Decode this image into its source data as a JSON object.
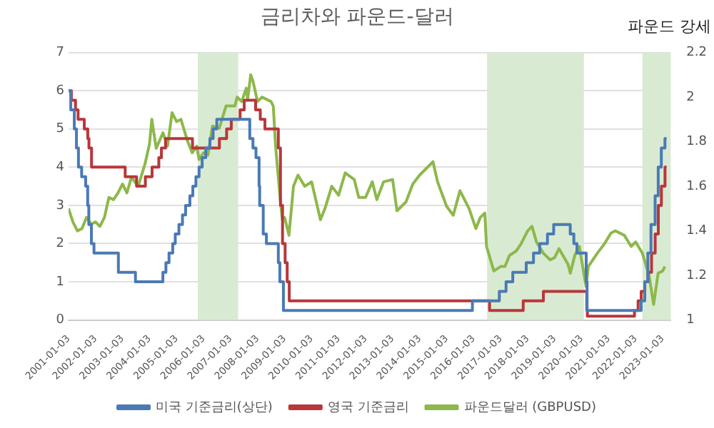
{
  "chart_data": {
    "type": "line",
    "title": "금리차와 파운드-달러",
    "y2label": "파운드 강세",
    "xlim": [
      "2001-01-01",
      "2023-04-20"
    ],
    "xticks": [
      "2001-01-03",
      "2002-01-03",
      "2003-01-03",
      "2004-01-03",
      "2005-01-03",
      "2006-01-03",
      "2007-01-03",
      "2008-01-03",
      "2009-01-03",
      "2010-01-03",
      "2011-01-03",
      "2012-01-03",
      "2013-01-03",
      "2014-01-03",
      "2015-01-03",
      "2016-01-03",
      "2017-01-03",
      "2018-01-03",
      "2019-01-03",
      "2020-01-03",
      "2021-01-03",
      "2022-01-03",
      "2023-01-03"
    ],
    "ylim": [
      0,
      7
    ],
    "yticks": [
      0,
      1,
      2,
      3,
      4,
      5,
      6,
      7
    ],
    "y2lim": [
      1,
      2.2
    ],
    "y2ticks": [
      1,
      1.2,
      1.4,
      1.6,
      1.8,
      2,
      2.2
    ],
    "grid": "y",
    "legend": "bottom",
    "marker": "none",
    "bands": [
      {
        "axis": "x",
        "from": "2005-10-15",
        "to": "2007-04-15",
        "color": "#d9ead3"
      },
      {
        "axis": "x",
        "from": "2016-07-01",
        "to": "2020-02-01",
        "color": "#d9ead3"
      },
      {
        "axis": "x",
        "from": "2022-04-01",
        "to": "2023-04-20",
        "color": "#d9ead3"
      }
    ],
    "series": [
      {
        "name": "미국 기준금리(상단)",
        "type": "step",
        "color": "#4a7ab5",
        "x": [
          "2001-01-03",
          "2001-01-31",
          "2001-03-20",
          "2001-04-18",
          "2001-05-15",
          "2001-06-27",
          "2001-08-21",
          "2001-09-17",
          "2001-10-02",
          "2001-11-06",
          "2001-12-11",
          "2002-11-06",
          "2003-06-25",
          "2004-06-30",
          "2004-08-10",
          "2004-09-21",
          "2004-11-10",
          "2004-12-14",
          "2005-02-02",
          "2005-03-22",
          "2005-05-03",
          "2005-06-30",
          "2005-08-09",
          "2005-09-20",
          "2005-11-01",
          "2005-12-13",
          "2006-01-31",
          "2006-03-28",
          "2006-05-10",
          "2006-06-29",
          "2007-09-18",
          "2007-10-31",
          "2007-12-11",
          "2008-01-22",
          "2008-01-30",
          "2008-03-18",
          "2008-04-30",
          "2008-10-08",
          "2008-10-29",
          "2008-12-16",
          "2015-12-16",
          "2016-12-14",
          "2017-03-15",
          "2017-06-14",
          "2017-12-13",
          "2018-03-21",
          "2018-06-13",
          "2018-09-26",
          "2018-12-19",
          "2019-07-31",
          "2019-09-18",
          "2019-10-30",
          "2020-03-03",
          "2020-03-15",
          "2022-03-16",
          "2022-05-04",
          "2022-06-15",
          "2022-07-27",
          "2022-09-21",
          "2022-11-02",
          "2022-12-14",
          "2023-02-01",
          "2023-02-24"
        ],
        "values": [
          6.0,
          5.5,
          5.0,
          4.5,
          4.0,
          3.75,
          3.5,
          3.0,
          2.5,
          2.0,
          1.75,
          1.25,
          1.0,
          1.25,
          1.5,
          1.75,
          2.0,
          2.25,
          2.5,
          2.75,
          3.0,
          3.25,
          3.5,
          3.75,
          4.0,
          4.25,
          4.5,
          4.75,
          5.0,
          5.25,
          4.75,
          4.5,
          4.25,
          3.5,
          3.0,
          2.25,
          2.0,
          1.5,
          1.0,
          0.25,
          0.5,
          0.75,
          1.0,
          1.25,
          1.5,
          1.75,
          2.0,
          2.25,
          2.5,
          2.25,
          2.0,
          1.75,
          1.0,
          0.25,
          0.5,
          1.0,
          1.75,
          2.5,
          3.25,
          4.0,
          4.5,
          4.75,
          4.75
        ]
      },
      {
        "name": "영국 기준금리",
        "type": "step",
        "color": "#b8373a",
        "x": [
          "2001-01-03",
          "2001-02-08",
          "2001-04-05",
          "2001-05-10",
          "2001-08-02",
          "2001-09-18",
          "2001-10-04",
          "2001-11-08",
          "2003-02-06",
          "2003-07-10",
          "2003-11-06",
          "2004-02-05",
          "2004-05-06",
          "2004-06-10",
          "2004-08-05",
          "2005-08-04",
          "2006-08-03",
          "2006-11-09",
          "2007-01-11",
          "2007-05-10",
          "2007-07-05",
          "2007-12-06",
          "2008-02-07",
          "2008-04-10",
          "2008-10-08",
          "2008-11-06",
          "2008-12-04",
          "2009-01-08",
          "2009-02-05",
          "2009-03-05",
          "2016-08-04",
          "2017-11-02",
          "2018-08-02",
          "2020-03-11",
          "2020-03-19",
          "2021-12-16",
          "2022-02-03",
          "2022-03-17",
          "2022-05-05",
          "2022-06-16",
          "2022-08-04",
          "2022-09-22",
          "2022-11-03",
          "2022-12-15",
          "2023-02-02",
          "2023-02-24"
        ],
        "values": [
          6.0,
          5.75,
          5.5,
          5.25,
          5.0,
          4.75,
          4.5,
          4.0,
          3.75,
          3.5,
          3.75,
          4.0,
          4.25,
          4.5,
          4.75,
          4.5,
          4.75,
          5.0,
          5.25,
          5.5,
          5.75,
          5.5,
          5.25,
          5.0,
          4.5,
          3.0,
          2.0,
          1.5,
          1.0,
          0.5,
          0.25,
          0.5,
          0.75,
          0.25,
          0.1,
          0.25,
          0.5,
          0.75,
          1.0,
          1.25,
          1.75,
          2.25,
          3.0,
          3.5,
          4.0,
          4.0
        ]
      },
      {
        "name": "파운드달러 (GBPUSD)",
        "type": "line",
        "axis": "y2",
        "color": "#8db84a",
        "x": [
          "2001-01",
          "2001-03",
          "2001-05",
          "2001-07",
          "2001-09",
          "2001-11",
          "2002-01",
          "2002-03",
          "2002-05",
          "2002-07",
          "2002-09",
          "2002-11",
          "2003-01",
          "2003-03",
          "2003-05",
          "2003-08",
          "2003-11",
          "2004-01",
          "2004-02",
          "2004-04",
          "2004-07",
          "2004-09",
          "2004-11",
          "2005-01",
          "2005-03",
          "2005-06",
          "2005-08",
          "2005-10",
          "2005-11",
          "2006-01",
          "2006-03",
          "2006-05",
          "2006-08",
          "2006-11",
          "2007-01",
          "2007-03",
          "2007-04",
          "2007-06",
          "2007-08-01",
          "2007-08-20",
          "2007-10",
          "2007-11",
          "2008-01",
          "2008-03",
          "2008-07",
          "2008-08",
          "2008-09",
          "2008-11",
          "2008-12",
          "2009-01",
          "2009-03",
          "2009-05",
          "2009-07",
          "2009-10",
          "2010-01",
          "2010-05",
          "2010-07",
          "2010-10",
          "2011-01",
          "2011-04",
          "2011-08",
          "2011-10",
          "2012-01",
          "2012-04",
          "2012-06",
          "2012-09",
          "2013-01",
          "2013-03",
          "2013-07",
          "2013-10",
          "2014-01",
          "2014-07",
          "2014-09",
          "2015-01",
          "2015-04",
          "2015-07",
          "2015-11",
          "2016-02",
          "2016-04",
          "2016-06-01",
          "2016-06-24",
          "2016-10",
          "2017-01",
          "2017-03",
          "2017-05",
          "2017-08",
          "2017-10",
          "2018-01",
          "2018-03",
          "2018-05",
          "2018-08",
          "2018-11",
          "2019-01",
          "2019-03",
          "2019-07",
          "2019-08",
          "2019-10",
          "2019-12",
          "2020-03",
          "2020-04",
          "2020-08",
          "2020-11",
          "2021-02",
          "2021-04",
          "2021-08",
          "2021-11",
          "2022-01",
          "2022-04",
          "2022-07",
          "2022-09",
          "2022-11",
          "2023-01",
          "2023-02"
        ],
        "values": [
          1.5,
          1.44,
          1.4,
          1.41,
          1.46,
          1.43,
          1.44,
          1.42,
          1.46,
          1.55,
          1.54,
          1.57,
          1.61,
          1.57,
          1.64,
          1.6,
          1.7,
          1.79,
          1.9,
          1.77,
          1.84,
          1.78,
          1.93,
          1.89,
          1.9,
          1.8,
          1.75,
          1.78,
          1.72,
          1.75,
          1.74,
          1.87,
          1.86,
          1.96,
          1.96,
          1.96,
          2.0,
          1.98,
          2.04,
          1.99,
          2.1,
          2.07,
          1.98,
          2.0,
          1.98,
          1.96,
          1.78,
          1.55,
          1.45,
          1.46,
          1.38,
          1.6,
          1.65,
          1.6,
          1.62,
          1.45,
          1.5,
          1.6,
          1.56,
          1.66,
          1.63,
          1.55,
          1.55,
          1.62,
          1.54,
          1.62,
          1.63,
          1.49,
          1.53,
          1.61,
          1.65,
          1.71,
          1.62,
          1.51,
          1.47,
          1.58,
          1.5,
          1.41,
          1.46,
          1.48,
          1.33,
          1.22,
          1.24,
          1.24,
          1.29,
          1.31,
          1.34,
          1.4,
          1.42,
          1.35,
          1.3,
          1.27,
          1.28,
          1.32,
          1.25,
          1.21,
          1.29,
          1.33,
          1.15,
          1.24,
          1.3,
          1.34,
          1.39,
          1.4,
          1.38,
          1.33,
          1.35,
          1.3,
          1.2,
          1.07,
          1.21,
          1.22,
          1.24
        ]
      }
    ]
  }
}
